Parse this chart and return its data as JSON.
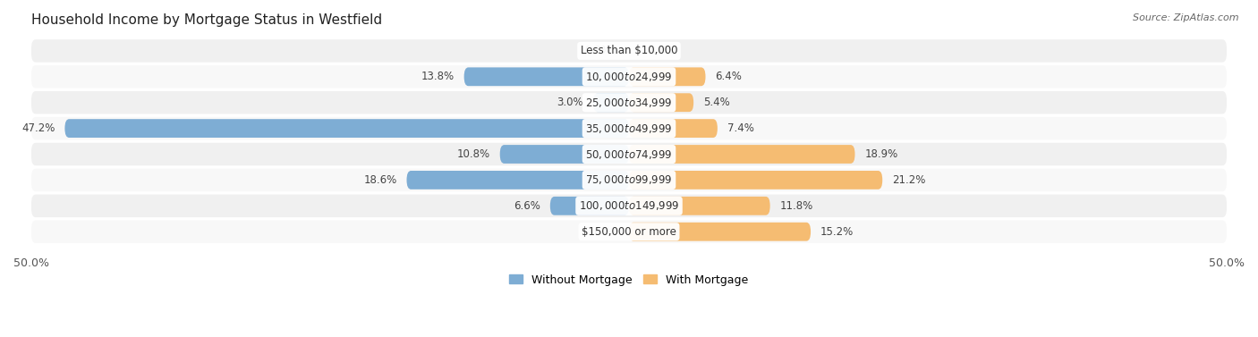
{
  "title": "Household Income by Mortgage Status in Westfield",
  "source": "Source: ZipAtlas.com",
  "categories": [
    "Less than $10,000",
    "$10,000 to $24,999",
    "$25,000 to $34,999",
    "$35,000 to $49,999",
    "$50,000 to $74,999",
    "$75,000 to $99,999",
    "$100,000 to $149,999",
    "$150,000 or more"
  ],
  "without_mortgage": [
    0.0,
    13.8,
    3.0,
    47.2,
    10.8,
    18.6,
    6.6,
    0.0
  ],
  "with_mortgage": [
    0.0,
    6.4,
    5.4,
    7.4,
    18.9,
    21.2,
    11.8,
    15.2
  ],
  "color_without": "#7eadd4",
  "color_with": "#f5bc72",
  "color_row_odd": "#f0f0f0",
  "color_row_even": "#f8f8f8",
  "xlim": [
    -50,
    50
  ],
  "title_fontsize": 11,
  "source_fontsize": 8,
  "axis_fontsize": 9,
  "bar_label_fontsize": 8.5,
  "category_label_fontsize": 8.5
}
